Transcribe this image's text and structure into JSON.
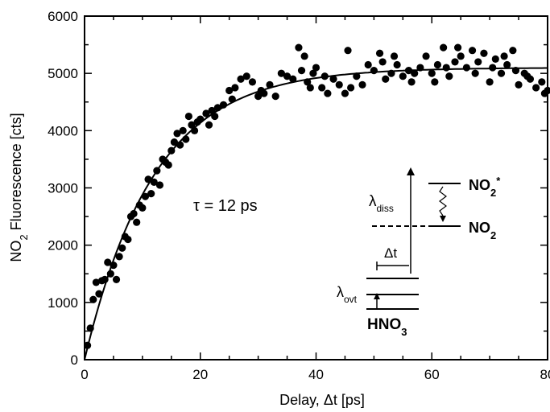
{
  "chart_data": {
    "type": "scatter",
    "title": "",
    "xlabel": {
      "prefix": "Delay, ",
      "symbol": "Δt",
      "suffix": " [ps]"
    },
    "ylabel": {
      "pre": "NO",
      "sub": "2",
      "post": " Fluorescence [cts]"
    },
    "xlim": [
      0,
      80
    ],
    "ylim": [
      0,
      6000
    ],
    "xticks": [
      0,
      20,
      40,
      60,
      80
    ],
    "yticks": [
      0,
      1000,
      2000,
      3000,
      4000,
      5000,
      6000
    ],
    "grid": false,
    "legend": "none",
    "series": [
      {
        "kind": "points",
        "points": [
          [
            0.5,
            250
          ],
          [
            1.0,
            550
          ],
          [
            1.5,
            1050
          ],
          [
            2.0,
            1350
          ],
          [
            2.5,
            1150
          ],
          [
            3.0,
            1380
          ],
          [
            3.5,
            1400
          ],
          [
            4.0,
            1700
          ],
          [
            4.5,
            1500
          ],
          [
            5.0,
            1650
          ],
          [
            5.5,
            1400
          ],
          [
            6.0,
            1800
          ],
          [
            6.5,
            1950
          ],
          [
            7.0,
            2150
          ],
          [
            7.5,
            2100
          ],
          [
            8.0,
            2500
          ],
          [
            8.5,
            2550
          ],
          [
            9.0,
            2400
          ],
          [
            9.5,
            2700
          ],
          [
            10.0,
            2650
          ],
          [
            10.5,
            2850
          ],
          [
            11.0,
            3150
          ],
          [
            11.5,
            2900
          ],
          [
            12.0,
            3100
          ],
          [
            12.5,
            3300
          ],
          [
            13.0,
            3050
          ],
          [
            13.5,
            3500
          ],
          [
            14.0,
            3450
          ],
          [
            14.5,
            3400
          ],
          [
            15.0,
            3650
          ],
          [
            15.5,
            3800
          ],
          [
            16.0,
            3950
          ],
          [
            16.5,
            3750
          ],
          [
            17.0,
            4000
          ],
          [
            17.5,
            3850
          ],
          [
            18.0,
            4250
          ],
          [
            18.5,
            4100
          ],
          [
            19.0,
            4000
          ],
          [
            19.5,
            4150
          ],
          [
            20.0,
            4200
          ],
          [
            21.0,
            4300
          ],
          [
            21.5,
            4100
          ],
          [
            22.0,
            4350
          ],
          [
            22.5,
            4250
          ],
          [
            23.0,
            4400
          ],
          [
            24.0,
            4450
          ],
          [
            25.0,
            4700
          ],
          [
            25.5,
            4550
          ],
          [
            26.0,
            4750
          ],
          [
            27.0,
            4900
          ],
          [
            28.0,
            4950
          ],
          [
            29.0,
            4850
          ],
          [
            30.0,
            4600
          ],
          [
            30.5,
            4700
          ],
          [
            31.0,
            4650
          ],
          [
            32.0,
            4800
          ],
          [
            33.0,
            4600
          ],
          [
            34.0,
            5000
          ],
          [
            35.0,
            4950
          ],
          [
            36.0,
            4900
          ],
          [
            37.0,
            5450
          ],
          [
            37.5,
            5050
          ],
          [
            38.0,
            5300
          ],
          [
            38.5,
            4850
          ],
          [
            39.0,
            4750
          ],
          [
            39.5,
            5000
          ],
          [
            40.0,
            5100
          ],
          [
            41.0,
            4750
          ],
          [
            41.5,
            4950
          ],
          [
            42.0,
            4650
          ],
          [
            43.0,
            4900
          ],
          [
            44.0,
            4800
          ],
          [
            45.0,
            4650
          ],
          [
            45.5,
            5400
          ],
          [
            46.0,
            4750
          ],
          [
            47.0,
            4950
          ],
          [
            48.0,
            4800
          ],
          [
            49.0,
            5150
          ],
          [
            50.0,
            5050
          ],
          [
            51.0,
            5350
          ],
          [
            51.5,
            5200
          ],
          [
            52.0,
            4900
          ],
          [
            53.0,
            5000
          ],
          [
            53.5,
            5300
          ],
          [
            54.0,
            5150
          ],
          [
            55.0,
            4950
          ],
          [
            56.0,
            5050
          ],
          [
            56.5,
            4850
          ],
          [
            57.0,
            5000
          ],
          [
            58.0,
            5100
          ],
          [
            59.0,
            5300
          ],
          [
            60.0,
            5000
          ],
          [
            60.5,
            4850
          ],
          [
            61.0,
            5150
          ],
          [
            62.0,
            5450
          ],
          [
            62.5,
            5100
          ],
          [
            63.0,
            4950
          ],
          [
            64.0,
            5200
          ],
          [
            64.5,
            5450
          ],
          [
            65.0,
            5300
          ],
          [
            66.0,
            5100
          ],
          [
            67.0,
            5400
          ],
          [
            67.5,
            5000
          ],
          [
            68.0,
            5200
          ],
          [
            69.0,
            5350
          ],
          [
            70.0,
            4850
          ],
          [
            70.5,
            5100
          ],
          [
            71.0,
            5250
          ],
          [
            72.0,
            5000
          ],
          [
            72.5,
            5300
          ],
          [
            73.0,
            5150
          ],
          [
            74.0,
            5400
          ],
          [
            74.5,
            5050
          ],
          [
            75.0,
            4800
          ],
          [
            76.0,
            5000
          ],
          [
            76.5,
            4950
          ],
          [
            77.0,
            4900
          ],
          [
            78.0,
            4750
          ],
          [
            79.0,
            4850
          ],
          [
            79.5,
            4650
          ],
          [
            80.0,
            4700
          ]
        ]
      },
      {
        "kind": "fit",
        "model": "single-exponential rise",
        "amplitude": 5100,
        "tau_ps": 12
      }
    ],
    "annotations": {
      "tau_symbol": "τ",
      "tau_text": " = 12 ps",
      "lambda": "λ",
      "diss_sub": "diss",
      "ovt_sub": "ovt",
      "delta_t": "Δt",
      "no2_star": {
        "main": "NO",
        "sub": "2",
        "sup": "*"
      },
      "no2": {
        "main": "NO",
        "sub": "2"
      },
      "hno3": {
        "main": "HNO",
        "sub": "3"
      }
    }
  }
}
